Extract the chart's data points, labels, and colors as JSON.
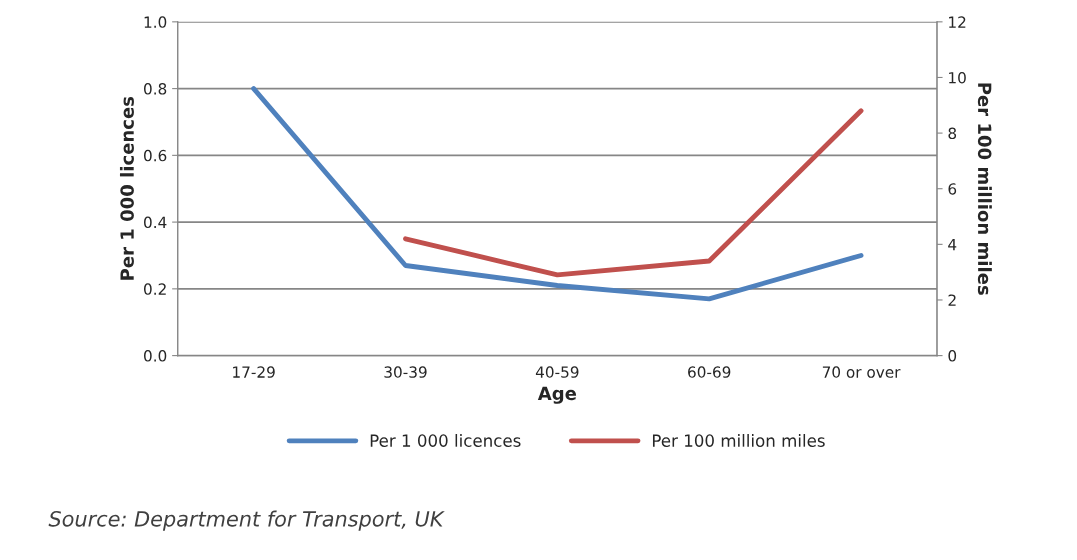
{
  "chart_data": {
    "type": "line",
    "categories": [
      "17-29",
      "30-39",
      "40-59",
      "60-69",
      "70 or over"
    ],
    "series": [
      {
        "name": "Per 1 000 licences",
        "color": "#4f81bd",
        "values": [
          0.8,
          0.27,
          0.21,
          0.17,
          0.3
        ]
      },
      {
        "name": "Per 100 million miles",
        "color": "#c0504d",
        "axis": "y2",
        "values": [
          null,
          4.2,
          2.9,
          3.4,
          8.8
        ]
      }
    ],
    "xlabel": "Age",
    "ylabel": "Per 1 000 licences",
    "y2label": "Per 100 million miles",
    "ylim": [
      0,
      1.0
    ],
    "yticks": [
      {
        "value": 0,
        "label": "0.0"
      },
      0.2,
      0.4,
      0.6,
      0.8,
      {
        "value": 1.0,
        "label": "1.0"
      }
    ],
    "y2lim": [
      0,
      12
    ],
    "y2ticks": [
      0,
      2,
      4,
      6,
      8,
      10,
      12
    ],
    "grid": "y",
    "legend": "bottom",
    "line_style": "solid",
    "marker": "none",
    "annotations": [
      "Source: Department for Transport, UK"
    ]
  }
}
